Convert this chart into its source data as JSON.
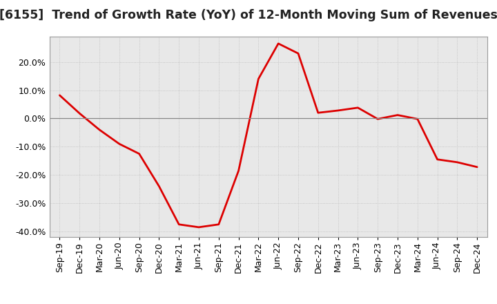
{
  "title": "[6155]  Trend of Growth Rate (YoY) of 12-Month Moving Sum of Revenues",
  "line_color": "#dd0000",
  "line_width": 2.0,
  "background_color": "#ffffff",
  "plot_bg_color": "#e8e8e8",
  "grid_color": "#bbbbbb",
  "ylim": [
    -0.42,
    0.29
  ],
  "yticks": [
    -0.4,
    -0.3,
    -0.2,
    -0.1,
    0.0,
    0.1,
    0.2
  ],
  "dates": [
    "Sep-19",
    "Dec-19",
    "Mar-20",
    "Jun-20",
    "Sep-20",
    "Dec-20",
    "Mar-21",
    "Jun-21",
    "Sep-21",
    "Dec-21",
    "Mar-22",
    "Jun-22",
    "Sep-22",
    "Dec-22",
    "Mar-23",
    "Jun-23",
    "Sep-23",
    "Dec-23",
    "Mar-24",
    "Jun-24",
    "Sep-24",
    "Dec-24"
  ],
  "values": [
    0.082,
    0.018,
    -0.04,
    -0.09,
    -0.125,
    -0.24,
    -0.375,
    -0.385,
    -0.375,
    -0.185,
    0.14,
    0.265,
    0.23,
    0.02,
    0.028,
    0.038,
    -0.002,
    0.012,
    -0.002,
    -0.145,
    -0.155,
    -0.172
  ],
  "title_fontsize": 12.5,
  "tick_fontsize": 9,
  "zero_line_color": "#888888",
  "spine_color": "#999999"
}
